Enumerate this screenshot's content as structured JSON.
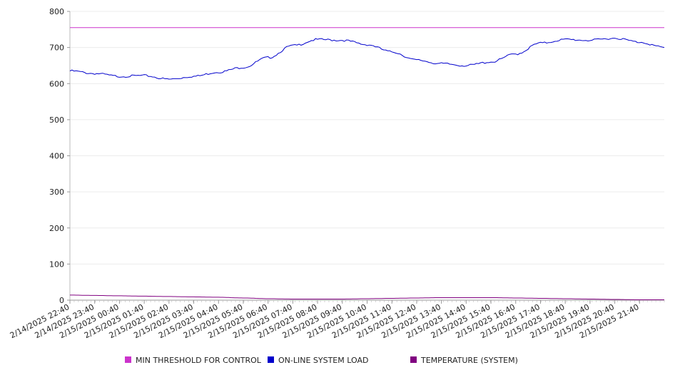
{
  "chart_data": {
    "type": "line",
    "ylim": [
      0,
      800
    ],
    "yticks": [
      0,
      100,
      200,
      300,
      400,
      500,
      600,
      700,
      800
    ],
    "grid": true,
    "legend_position": "bottom",
    "x_tick_labels": [
      "2/14/2025 22:40",
      "2/14/2025 23:40",
      "2/15/2025 00:40",
      "2/15/2025 01:40",
      "2/15/2025 02:40",
      "2/15/2025 03:40",
      "2/15/2025 04:40",
      "2/15/2025 05:40",
      "2/15/2025 06:40",
      "2/15/2025 07:40",
      "2/15/2025 08:40",
      "2/15/2025 09:40",
      "2/15/2025 10:40",
      "2/15/2025 11:40",
      "2/15/2025 12:40",
      "2/15/2025 13:40",
      "2/15/2025 14:40",
      "2/15/2025 15:40",
      "2/15/2025 16:40",
      "2/15/2025 17:40",
      "2/15/2025 18:40",
      "2/15/2025 19:40",
      "2/15/2025 20:40",
      "2/15/2025 21:40"
    ],
    "x": [
      "2/14/2025 22:40",
      "2/14/2025 23:40",
      "2/15/2025 00:40",
      "2/15/2025 01:40",
      "2/15/2025 02:40",
      "2/15/2025 03:40",
      "2/15/2025 04:40",
      "2/15/2025 05:40",
      "2/15/2025 06:40",
      "2/15/2025 07:40",
      "2/15/2025 08:40",
      "2/15/2025 09:40",
      "2/15/2025 10:40",
      "2/15/2025 11:40",
      "2/15/2025 12:40",
      "2/15/2025 13:40",
      "2/15/2025 14:40",
      "2/15/2025 15:40",
      "2/15/2025 16:40",
      "2/15/2025 17:40",
      "2/15/2025 18:40",
      "2/15/2025 19:40",
      "2/15/2025 20:40",
      "2/15/2025 21:40",
      "2/15/2025 22:40"
    ],
    "series": [
      {
        "name": "MIN THRESHOLD FOR CONTROL",
        "color": "#cc33cc",
        "values": [
          755,
          755,
          755,
          755,
          755,
          755,
          755,
          755,
          755,
          755,
          755,
          755,
          755,
          755,
          755,
          755,
          755,
          755,
          755,
          755,
          755,
          755,
          755,
          755,
          755
        ]
      },
      {
        "name": "ON-LINE SYSTEM LOAD",
        "color": "#0000cc",
        "values": [
          635,
          628,
          620,
          622,
          612,
          620,
          632,
          645,
          672,
          705,
          722,
          720,
          708,
          688,
          665,
          655,
          650,
          660,
          682,
          712,
          722,
          720,
          726,
          715,
          700
        ]
      },
      {
        "name": "TEMPERATURE (SYSTEM)",
        "color": "#800080",
        "values": [
          14,
          13,
          12,
          11,
          10,
          9,
          8,
          6,
          4,
          3,
          3,
          3,
          4,
          5,
          6,
          7,
          7,
          7,
          6,
          5,
          4,
          3,
          2,
          1,
          1
        ]
      }
    ]
  }
}
